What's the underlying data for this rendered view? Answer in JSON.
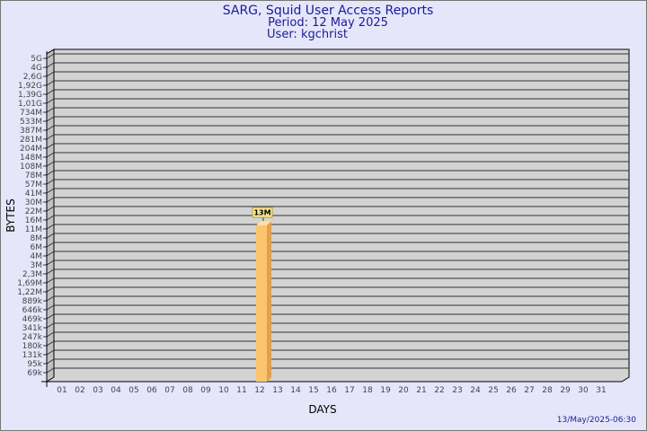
{
  "title": "SARG, Squid User Access Reports",
  "period": "Period: 12 May 2025",
  "user": "User: kgchrist",
  "generated": "13/May/2025-06:30",
  "colors": {
    "background": "#e6e6fa",
    "plot": "#d3d3d3",
    "title": "#1a1a9c",
    "bar": "#fcc46c",
    "bar_side": "#e0a050",
    "label_bg": "#f8e890"
  },
  "chart_data": {
    "type": "bar",
    "xlabel": "DAYS",
    "ylabel": "BYTES",
    "yscale": "log",
    "grid": true,
    "y_ticks": [
      "5G",
      "4G",
      "2,6G",
      "1,92G",
      "1,39G",
      "1,01G",
      "734M",
      "533M",
      "387M",
      "281M",
      "204M",
      "148M",
      "108M",
      "78M",
      "57M",
      "41M",
      "30M",
      "22M",
      "16M",
      "11M",
      "8M",
      "6M",
      "4M",
      "3M",
      "2,3M",
      "1,69M",
      "1,22M",
      "889k",
      "646k",
      "469k",
      "341k",
      "247k",
      "180k",
      "131k",
      "95k",
      "69k"
    ],
    "categories": [
      "01",
      "02",
      "03",
      "04",
      "05",
      "06",
      "07",
      "08",
      "09",
      "10",
      "11",
      "12",
      "13",
      "14",
      "15",
      "16",
      "17",
      "18",
      "19",
      "20",
      "21",
      "22",
      "23",
      "24",
      "25",
      "26",
      "27",
      "28",
      "29",
      "30",
      "31"
    ],
    "bars": [
      {
        "day": "12",
        "value": 13000000,
        "label": "13M"
      }
    ]
  }
}
